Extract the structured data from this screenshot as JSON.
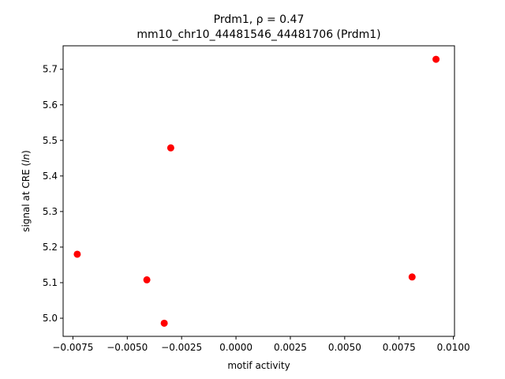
{
  "chart_data": {
    "type": "scatter",
    "title_line1": "Prdm1, ρ = 0.47",
    "title_line2": "mm10_chr10_44481546_44481706 (Prdm1)",
    "xlabel": "motif activity",
    "ylabel_prefix": "signal at CRE (",
    "ylabel_italic": "ln",
    "ylabel_suffix": ")",
    "xlim": [
      -0.00795,
      0.01005
    ],
    "ylim": [
      4.949,
      5.766
    ],
    "xticks": [
      {
        "value": -0.0075,
        "label": "−0.0075"
      },
      {
        "value": -0.005,
        "label": "−0.0050"
      },
      {
        "value": -0.0025,
        "label": "−0.0025"
      },
      {
        "value": 0.0,
        "label": "0.0000"
      },
      {
        "value": 0.0025,
        "label": "0.0025"
      },
      {
        "value": 0.005,
        "label": "0.0050"
      },
      {
        "value": 0.0075,
        "label": "0.0075"
      },
      {
        "value": 0.01,
        "label": "0.0100"
      }
    ],
    "yticks": [
      {
        "value": 5.0,
        "label": "5.0"
      },
      {
        "value": 5.1,
        "label": "5.1"
      },
      {
        "value": 5.2,
        "label": "5.2"
      },
      {
        "value": 5.3,
        "label": "5.3"
      },
      {
        "value": 5.4,
        "label": "5.4"
      },
      {
        "value": 5.5,
        "label": "5.5"
      },
      {
        "value": 5.6,
        "label": "5.6"
      },
      {
        "value": 5.7,
        "label": "5.7"
      }
    ],
    "points": [
      {
        "x": -0.0073,
        "y": 5.18
      },
      {
        "x": -0.0041,
        "y": 5.108
      },
      {
        "x": -0.0033,
        "y": 4.986
      },
      {
        "x": -0.003,
        "y": 5.479
      },
      {
        "x": 0.0081,
        "y": 5.116
      },
      {
        "x": 0.0092,
        "y": 5.728
      }
    ],
    "marker_color": "#ff0000",
    "grid": false
  }
}
